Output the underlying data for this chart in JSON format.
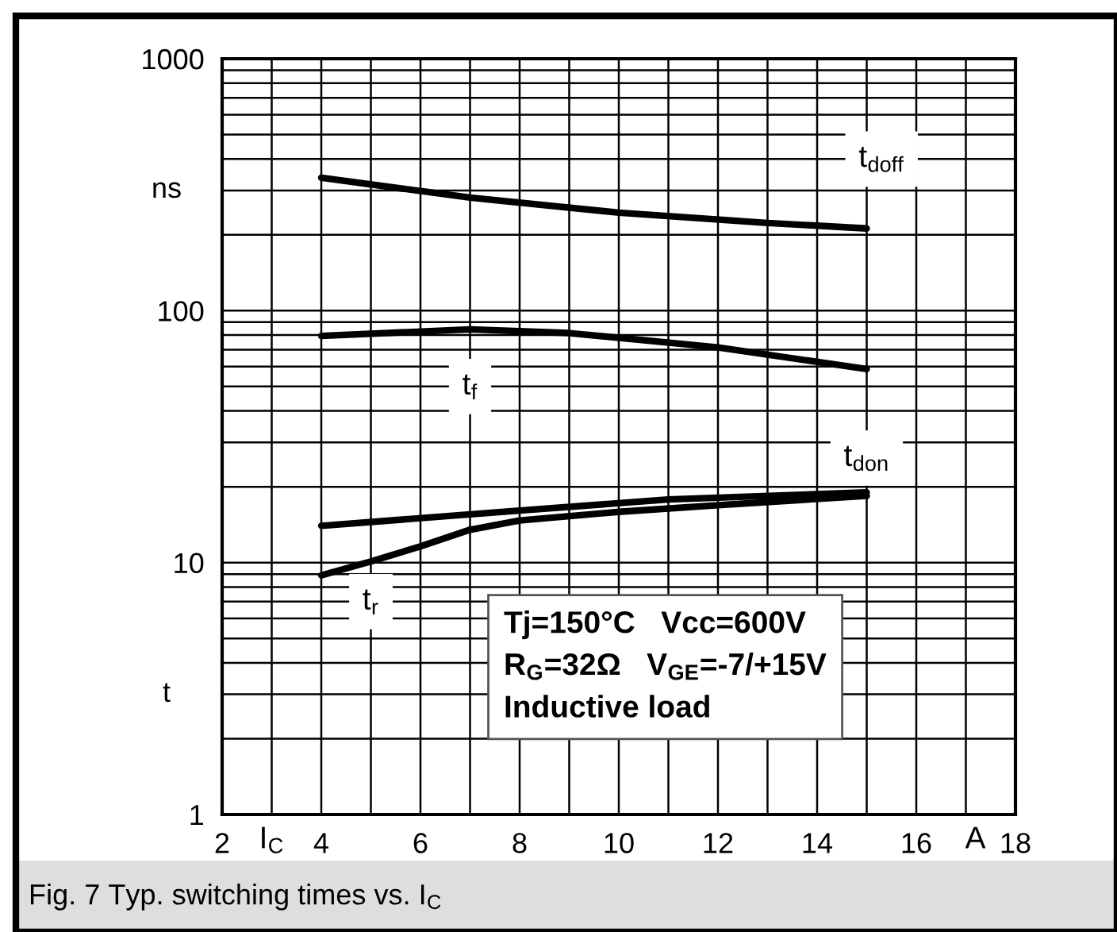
{
  "chart_data": {
    "type": "line",
    "xlabel": "I$_{C}$",
    "ylabel": "t",
    "log": "y",
    "xlim": [
      2,
      18
    ],
    "ylim": [
      1,
      1000
    ],
    "xticks": [
      2,
      {
        "value": 3,
        "label": null
      },
      4,
      {
        "value": 5,
        "label": null
      },
      6,
      {
        "value": 7,
        "label": null
      },
      8,
      {
        "value": 9,
        "label": null
      },
      10,
      {
        "value": 11,
        "label": null
      },
      12,
      {
        "value": 13,
        "label": null
      },
      14,
      {
        "value": 15,
        "label": null
      },
      16,
      {
        "value": 17,
        "label": null
      },
      18
    ],
    "yticks": [
      1,
      {
        "value": 2,
        "label": null
      },
      {
        "value": 3,
        "label": null
      },
      {
        "value": 4,
        "label": null
      },
      {
        "value": 5,
        "label": null
      },
      {
        "value": 6,
        "label": null
      },
      {
        "value": 7,
        "label": null
      },
      {
        "value": 8,
        "label": null
      },
      {
        "value": 9,
        "label": null
      },
      10,
      {
        "value": 20,
        "label": null
      },
      {
        "value": 30,
        "label": null
      },
      {
        "value": 40,
        "label": null
      },
      {
        "value": 50,
        "label": null
      },
      {
        "value": 60,
        "label": null
      },
      {
        "value": 70,
        "label": null
      },
      {
        "value": 80,
        "label": null
      },
      {
        "value": 90,
        "label": null
      },
      100,
      {
        "value": 200,
        "label": null
      },
      {
        "value": 300,
        "label": null
      },
      {
        "value": 400,
        "label": null
      },
      {
        "value": 500,
        "label": null
      },
      {
        "value": 600,
        "label": null
      },
      {
        "value": 700,
        "label": null
      },
      {
        "value": 800,
        "label": null
      },
      {
        "value": 900,
        "label": null
      },
      1000
    ],
    "grid": true,
    "line_style": "solid",
    "marker": "none",
    "series": [
      {
        "name": "t$_{doff}$",
        "color": "#000000",
        "x": [
          4,
          7,
          10,
          13,
          15
        ],
        "values": [
          337,
          281,
          245,
          223,
          212
        ]
      },
      {
        "name": "t$_{f}$",
        "color": "#000000",
        "x": [
          4,
          7,
          9,
          12,
          15
        ],
        "values": [
          79.4,
          84.3,
          81.5,
          71.5,
          58.6
        ]
      },
      {
        "name": "t$_{don}$",
        "color": "#000000",
        "x": [
          4,
          8,
          11,
          15
        ],
        "values": [
          14.0,
          16.1,
          17.8,
          19.0
        ]
      },
      {
        "name": "t$_{r}$",
        "color": "#000000",
        "x": [
          4,
          5,
          6,
          7,
          8,
          10,
          12,
          15
        ],
        "values": [
          8.9,
          10.1,
          11.6,
          13.5,
          14.7,
          15.9,
          16.9,
          18.4
        ]
      }
    ],
    "annotations": [
      "ns",
      "A",
      "Tj=150°C   Vcc=600V\nR$_{G}$=32Ω   V$_{GE}$=-7/+15V\nInductive load",
      "Fig. 7 Typ. switching times vs. I$_{C}$"
    ]
  }
}
